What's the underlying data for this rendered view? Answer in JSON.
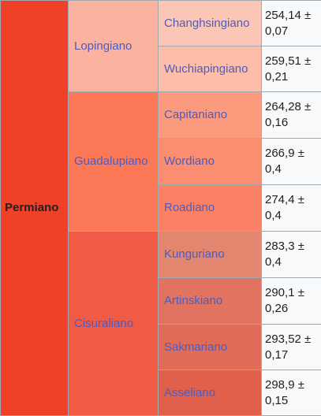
{
  "period": {
    "label": "Permiano",
    "color": "#f04028"
  },
  "epochs": [
    {
      "label": "Lopingiano",
      "color": "#fbb39f"
    },
    {
      "label": "Guadalupiano",
      "color": "#fc7856"
    },
    {
      "label": "Cisuraliano",
      "color": "#ef5b45"
    }
  ],
  "stages": [
    {
      "label": "Changhsingiano",
      "age": "254,14 ± 0,07",
      "color": "#fcc6b7"
    },
    {
      "label": "Wuchiapingiano",
      "age": "259,51 ± 0,21",
      "color": "#fcbea8"
    },
    {
      "label": "Capitaniano",
      "age": "264,28 ± 0,16",
      "color": "#fb9a7d"
    },
    {
      "label": "Wordiano",
      "age": "266,9 ± 0,4",
      "color": "#fb8d70"
    },
    {
      "label": "Roadiano",
      "age": "274,4 ± 0,4",
      "color": "#fb8064"
    },
    {
      "label": "Kunguriano",
      "age": "283,3 ± 0,4",
      "color": "#e2866f"
    },
    {
      "label": "Artinskiano",
      "age": "290,1 ± 0,26",
      "color": "#e17360"
    },
    {
      "label": "Sakmariano",
      "age": "293,52 ± 0,17",
      "color": "#e06b56"
    },
    {
      "label": "Asseliano",
      "age": "298,9 ± 0,15",
      "color": "#e0604c"
    }
  ]
}
